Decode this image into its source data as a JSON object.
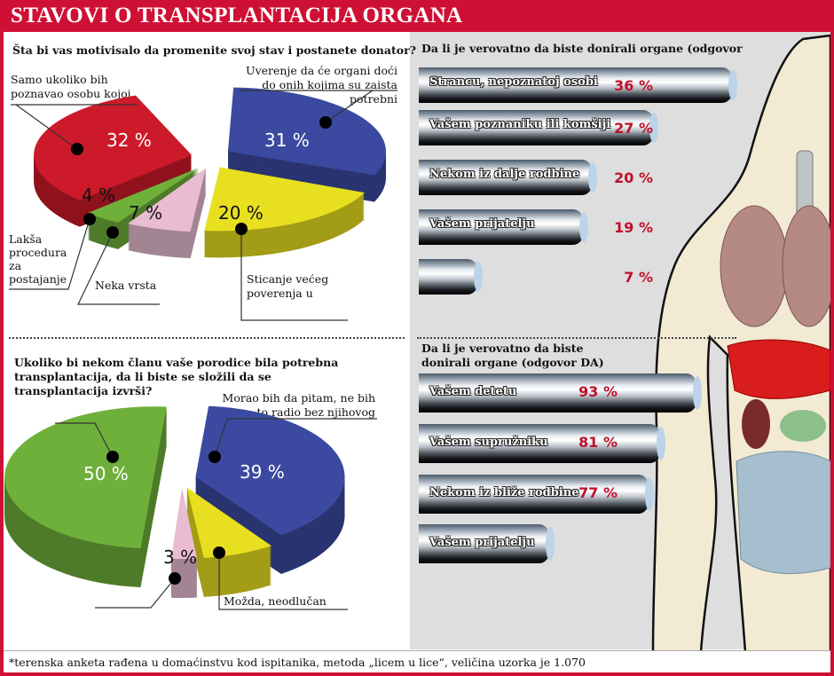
{
  "title": "STAVOVI O TRANSPLANTACIJA ORGANA",
  "footnote": "*terenska anketa rađena u domaćinstvu kod ispitanika, metoda „licem u lice“, veličina uzorka je 1.070",
  "colors": {
    "brand": "#cf1035",
    "red": "#cc1a2a",
    "blue": "#3b4aa0",
    "yellow": "#e8df20",
    "pink": "#e9bcd2",
    "green": "#6fb03a",
    "value_text": "#c0102a"
  },
  "chart_data": [
    {
      "type": "pie",
      "title": "Šta bi vas motivisalo da promenite svoj stav i postanete donator?",
      "slices": [
        {
          "label": "Uverenje da će organi doći do onih kojima su zaista potrebni",
          "value": 31,
          "value_label": "31 %",
          "color": "#3b4aa0"
        },
        {
          "label": "Sticanje većeg poverenja u",
          "value": 20,
          "value_label": "20 %",
          "color": "#e8df20"
        },
        {
          "label": "Neka vrsta",
          "value": 7,
          "value_label": "7 %",
          "color": "#e9bcd2"
        },
        {
          "label": "Lakša procedura za postajanje",
          "value": 4,
          "value_label": "4 %",
          "color": "#6fb03a"
        },
        {
          "label": "Samo ukoliko bih poznavao osobu kojoj",
          "value": 32,
          "value_label": "32 %",
          "color": "#cc1a2a"
        }
      ]
    },
    {
      "type": "pie",
      "title": "Ukoliko bi nekom članu vaše porodice bila potrebna transplantacija, da li biste se složili da se transplantacija izvrši?",
      "slices": [
        {
          "label": "Morao bih da pitam, ne bih to radio bez njihovog",
          "value": 39,
          "value_label": "39 %",
          "color": "#3b4aa0"
        },
        {
          "label": "Možda, neodlučan",
          "value": 8,
          "value_label": "",
          "color": "#e8df20"
        },
        {
          "label": "",
          "value": 3,
          "value_label": "3 %",
          "color": "#e9bcd2"
        },
        {
          "label": "",
          "value": 50,
          "value_label": "50 %",
          "color": "#6fb03a"
        }
      ]
    },
    {
      "type": "bar",
      "orientation": "horizontal",
      "title": "Da li je verovatno da biste donirali organe (odgovor",
      "categories": [
        "Strancu, nepoznatoj osobi",
        "Vašem poznaniku ili komšiji",
        "Nekom iz dalje rodbine",
        "Vašem prijatelju",
        ""
      ],
      "values": [
        36,
        27,
        20,
        19,
        7
      ],
      "value_labels": [
        "36 %",
        "27 %",
        "20 %",
        "19 %",
        "7 %"
      ]
    },
    {
      "type": "bar",
      "orientation": "horizontal",
      "title": "Da li je verovatno da biste donirali organe (odgovor DA)",
      "categories": [
        "Vašem detetu",
        "Vašem supružniku",
        "Nekom iz bliže rodbine",
        "Vašem prijatelju"
      ],
      "values": [
        93,
        81,
        77,
        44
      ],
      "value_labels": [
        "93 %",
        "81 %",
        "77 %",
        ""
      ]
    }
  ]
}
